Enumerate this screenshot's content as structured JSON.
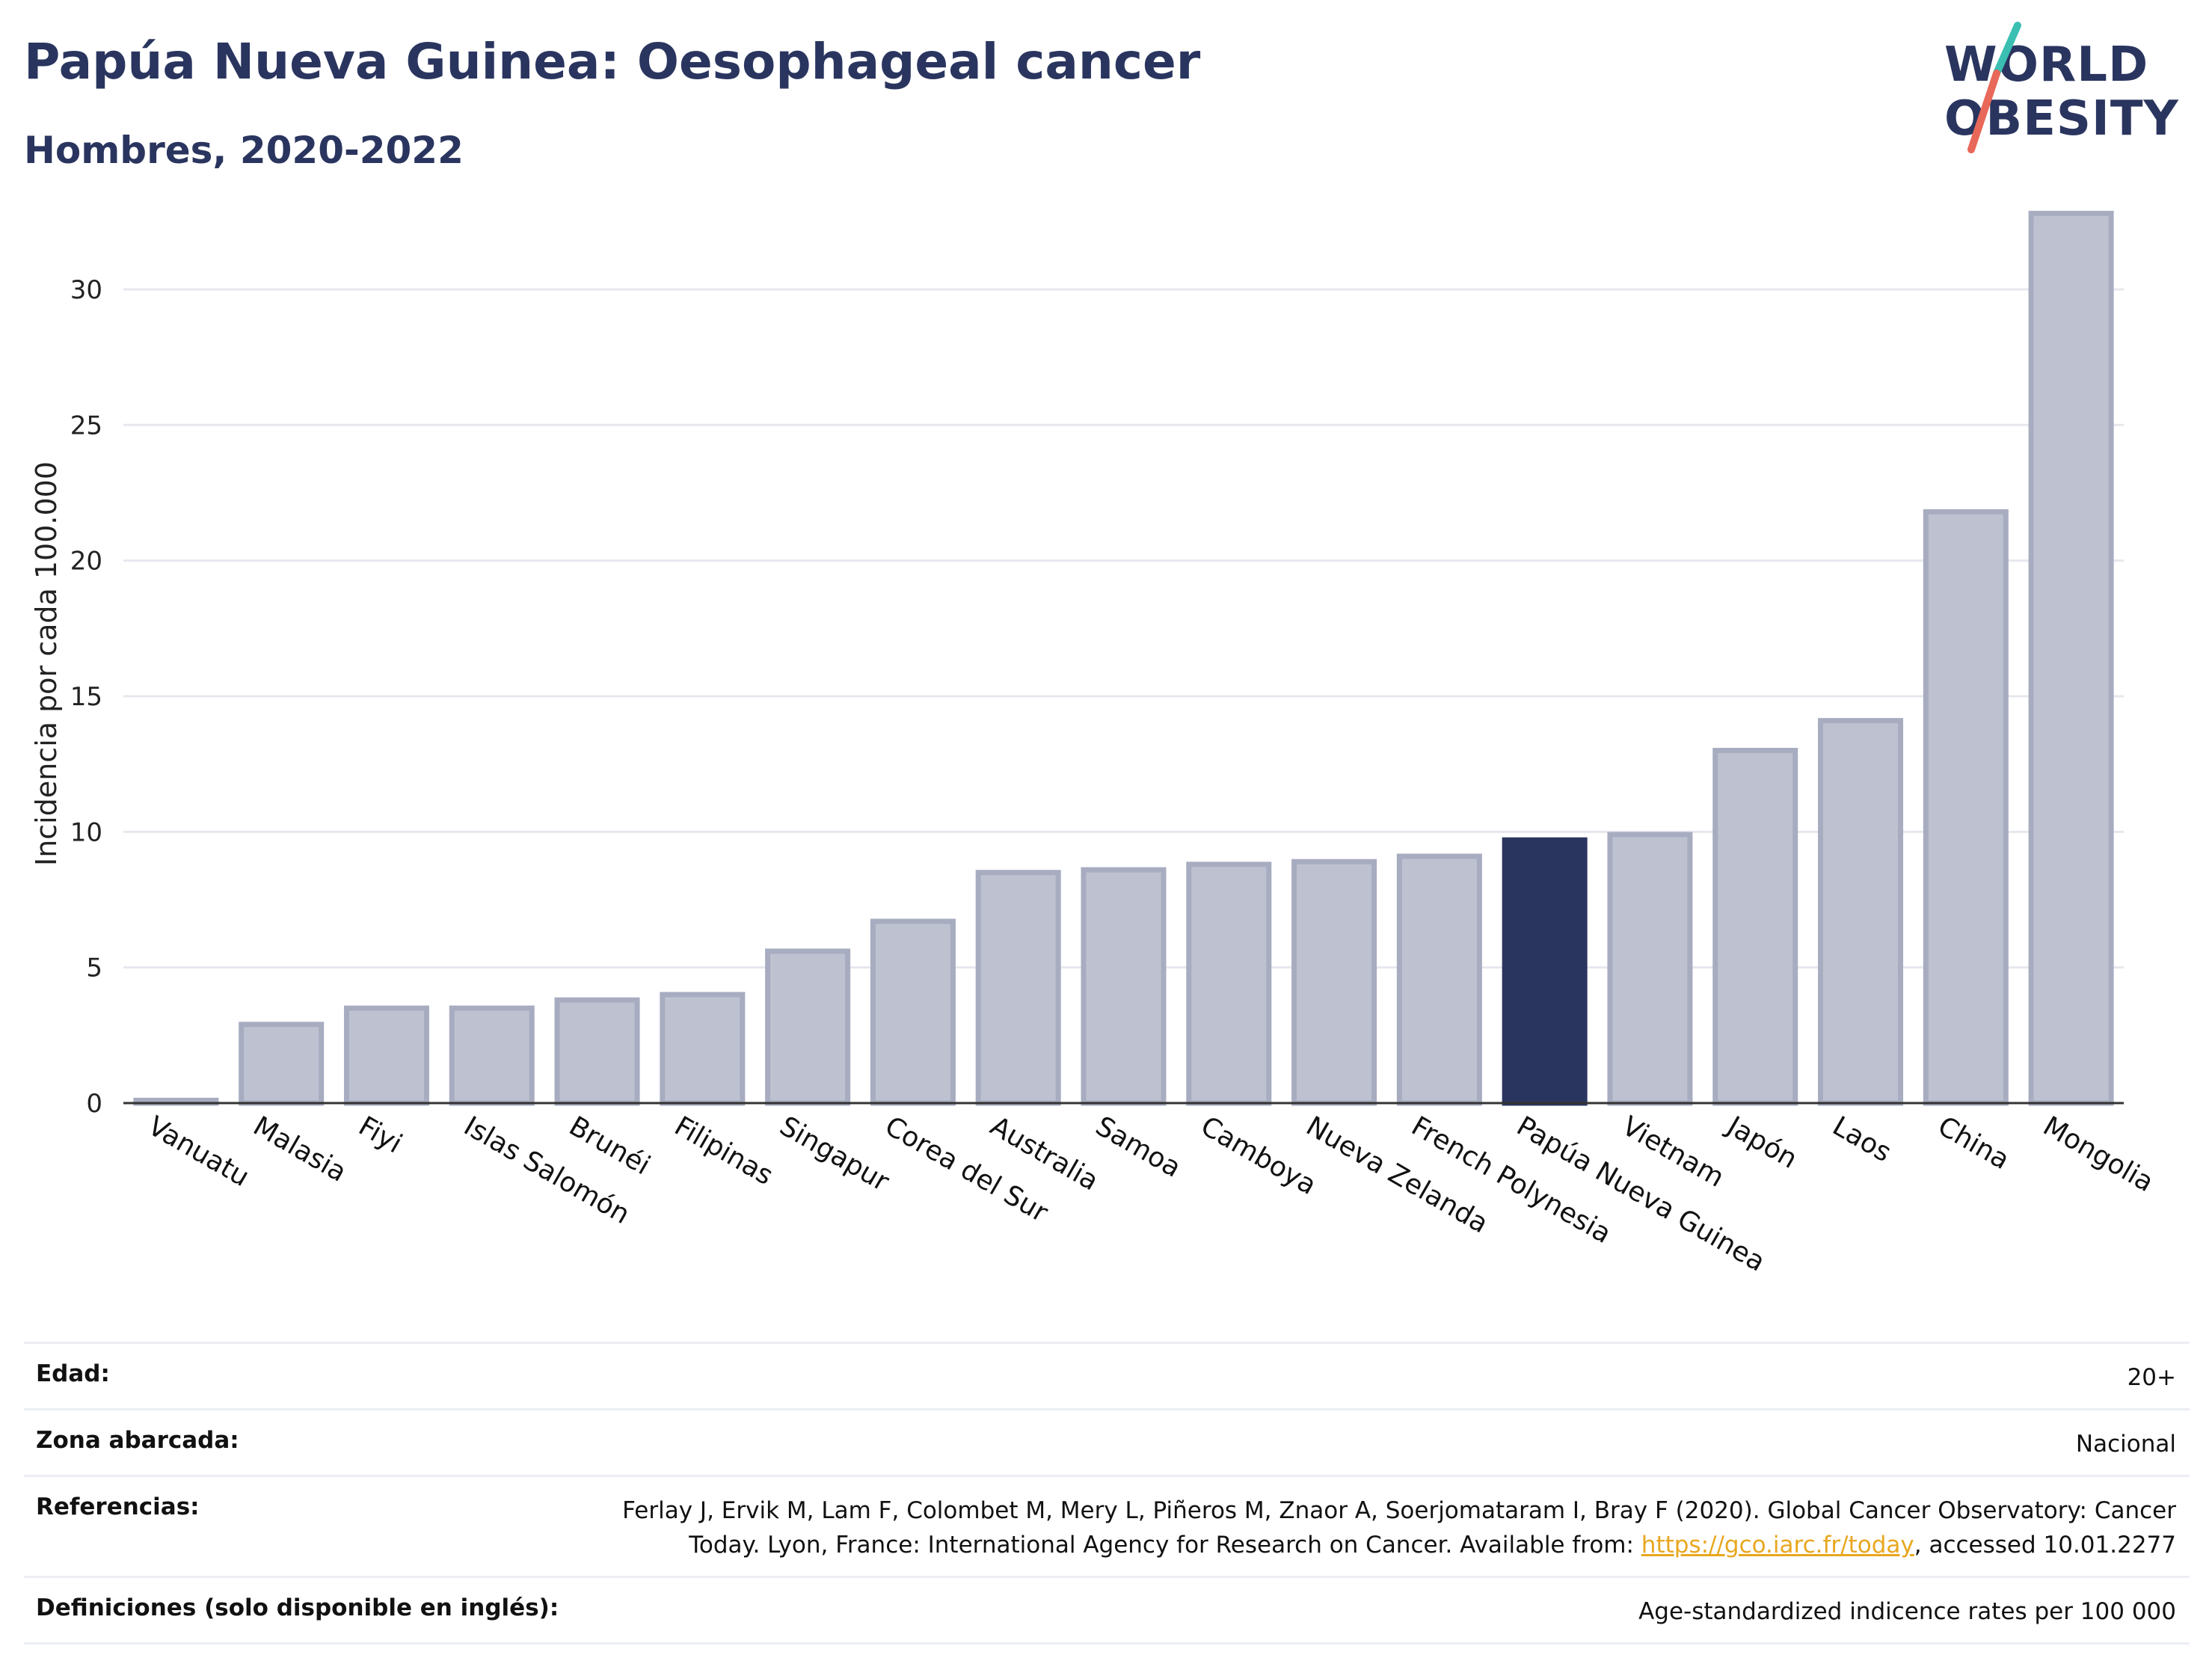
{
  "header": {
    "title": "Papúa Nueva Guinea: Oesophageal cancer",
    "subtitle": "Hombres, 2020-2022"
  },
  "logo": {
    "line1": "WORLD",
    "line2": "OBESITY",
    "colors": {
      "text": "#2a355f",
      "slash_top": "#3bbfb2",
      "slash_bottom": "#e8685a"
    }
  },
  "chart_data": {
    "type": "bar",
    "categories": [
      "Vanuatu",
      "Malasia",
      "Fiyi",
      "Islas Salomón",
      "Brunéi",
      "Filipinas",
      "Singapur",
      "Corea del Sur",
      "Australia",
      "Samoa",
      "Camboya",
      "Nueva Zelanda",
      "French Polynesia",
      "Papúa Nueva Guinea",
      "Vietnam",
      "Japón",
      "Laos",
      "China",
      "Mongolia"
    ],
    "values": [
      0.1,
      2.9,
      3.5,
      3.5,
      3.8,
      4.0,
      5.6,
      6.7,
      8.5,
      8.6,
      8.8,
      8.9,
      9.1,
      9.7,
      9.9,
      13.0,
      14.1,
      21.8,
      32.8
    ],
    "highlight": "Papúa Nueva Guinea",
    "ylabel": "Incidencia por cada 100.000",
    "xlabel": "",
    "ylim": [
      0,
      33.5
    ],
    "yticks": [
      0,
      5,
      10,
      15,
      20,
      25,
      30
    ],
    "grid": true,
    "colors": {
      "bar": "#bec2d0",
      "bar_border": "#a7acc0",
      "highlight": "#2a355f"
    }
  },
  "info": {
    "rows": [
      {
        "label": "Edad:",
        "value": "20+"
      },
      {
        "label": "Zona abarcada:",
        "value": "Nacional"
      },
      {
        "label": "Referencias:",
        "value_line1": "Ferlay J, Ervik M, Lam F, Colombet M, Mery L, Piñeros M, Znaor A, Soerjomataram I, Bray F (2020). Global Cancer Observatory: Cancer",
        "value_line2_pre": "Today. Lyon, France: International Agency for Research on Cancer. Available from: ",
        "link": "https://gco.iarc.fr/today",
        "value_line2_post": ", accessed 10.01.2277"
      },
      {
        "label": "Definiciones (solo disponible en inglés):",
        "value": "Age-standardized indicence rates per 100 000"
      }
    ]
  }
}
